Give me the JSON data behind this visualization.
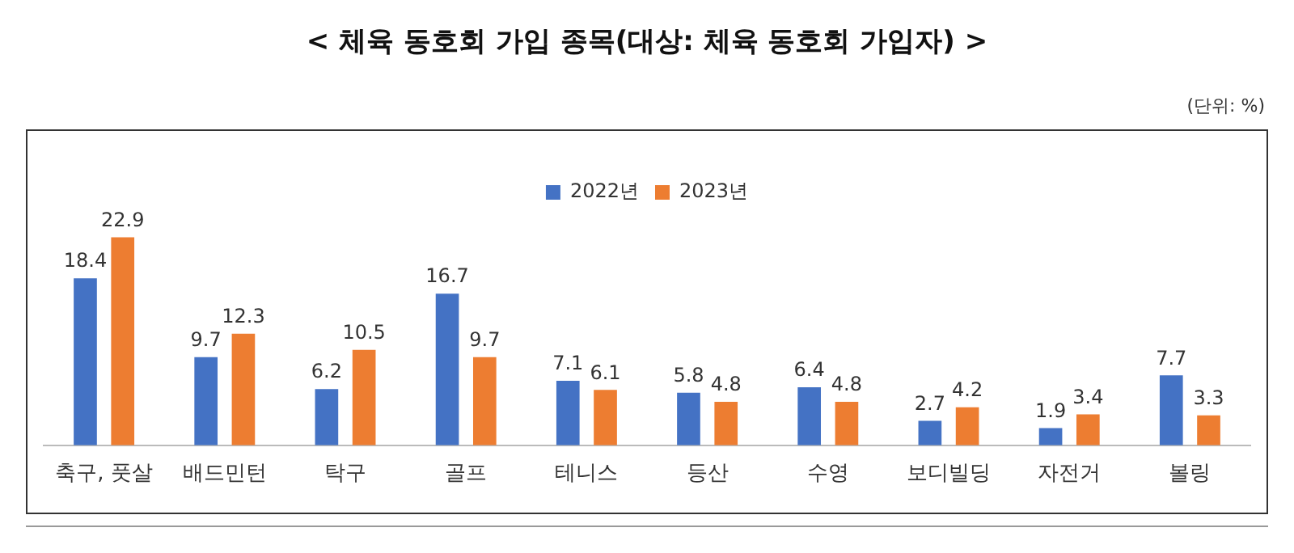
{
  "chart_data": {
    "type": "bar",
    "title": "< 체육 동호회 가입 종목(대상: 체육 동호회 가입자) >",
    "annotations": [
      "(단위: %)"
    ],
    "categories": [
      "축구, 풋살",
      "배드민턴",
      "탁구",
      "골프",
      "테니스",
      "등산",
      "수영",
      "보디빌딩",
      "자전거",
      "볼링"
    ],
    "series": [
      {
        "name": "2022년",
        "color": "#4472c4",
        "values": [
          18.4,
          9.7,
          6.2,
          16.7,
          7.1,
          5.8,
          6.4,
          2.7,
          1.9,
          7.7
        ]
      },
      {
        "name": "2023년",
        "color": "#ed7d31",
        "values": [
          22.9,
          12.3,
          10.5,
          9.7,
          6.1,
          4.8,
          4.8,
          4.2,
          3.4,
          3.3
        ]
      }
    ],
    "tick_labels": "x",
    "grid": false,
    "legend": "top",
    "data_labels": true
  }
}
